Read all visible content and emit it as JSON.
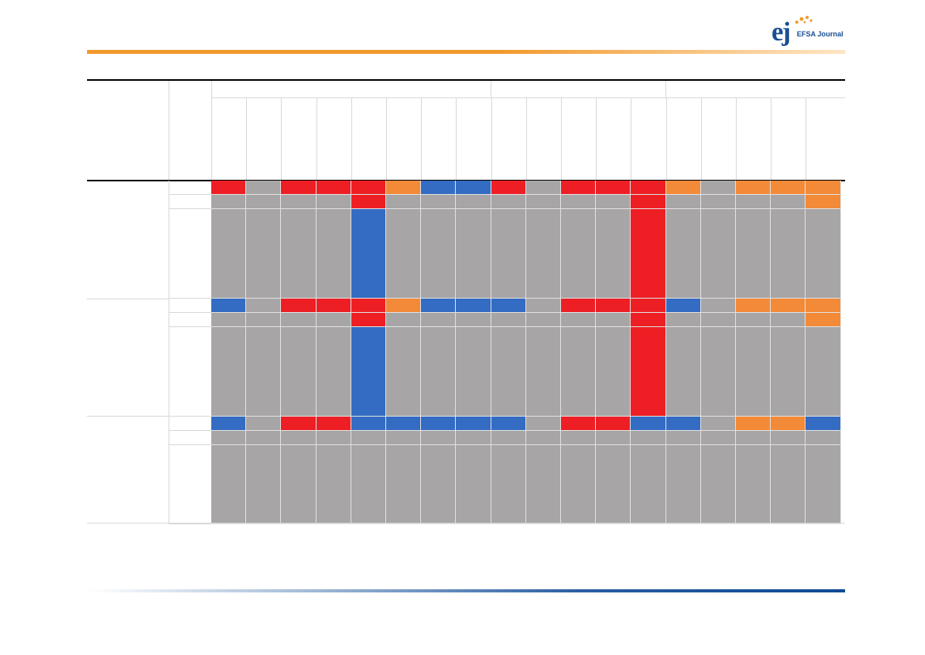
{
  "header": {
    "journal_name": "EFSA Journal",
    "logo_mark": "ej",
    "top_bar_color": "#f19a2e",
    "bottom_bar_color": "#0d4a95"
  },
  "legend_colors": {
    "R": "#ed1f24",
    "O": "#f28a38",
    "B": "#336cc2",
    "G": "#a7a5a6"
  },
  "matrix": {
    "columns": 18,
    "groups": [
      {
        "columns": 8
      },
      {
        "columns": 5
      },
      {
        "columns": 5
      }
    ],
    "rows": [
      {
        "band": "short",
        "cells": [
          "R",
          "G",
          "R",
          "R",
          "R",
          "O",
          "B",
          "B",
          "R",
          "G",
          "R",
          "R",
          "R",
          "O",
          "G",
          "O",
          "O",
          "O"
        ]
      },
      {
        "band": "short",
        "cells": [
          "G",
          "G",
          "G",
          "G",
          "R",
          "G",
          "G",
          "G",
          "G",
          "G",
          "G",
          "G",
          "R",
          "G",
          "G",
          "G",
          "G",
          "O"
        ]
      },
      {
        "band": "tall",
        "cells": [
          "G",
          "G",
          "G",
          "G",
          "B",
          "G",
          "G",
          "G",
          "G",
          "G",
          "G",
          "G",
          "R",
          "G",
          "G",
          "G",
          "G",
          "G"
        ]
      },
      {
        "band": "short",
        "cells": [
          "B",
          "G",
          "R",
          "R",
          "R",
          "O",
          "B",
          "B",
          "B",
          "G",
          "R",
          "R",
          "R",
          "B",
          "G",
          "O",
          "O",
          "O"
        ]
      },
      {
        "band": "short",
        "cells": [
          "G",
          "G",
          "G",
          "G",
          "R",
          "G",
          "G",
          "G",
          "G",
          "G",
          "G",
          "G",
          "R",
          "G",
          "G",
          "G",
          "G",
          "O"
        ]
      },
      {
        "band": "tall",
        "cells": [
          "G",
          "G",
          "G",
          "G",
          "B",
          "G",
          "G",
          "G",
          "G",
          "G",
          "G",
          "G",
          "R",
          "G",
          "G",
          "G",
          "G",
          "G"
        ]
      },
      {
        "band": "short",
        "cells": [
          "B",
          "G",
          "R",
          "R",
          "B",
          "B",
          "B",
          "B",
          "B",
          "G",
          "R",
          "R",
          "B",
          "B",
          "G",
          "O",
          "O",
          "B"
        ]
      },
      {
        "band": "short",
        "cells": [
          "G",
          "G",
          "G",
          "G",
          "G",
          "G",
          "G",
          "G",
          "G",
          "G",
          "G",
          "G",
          "G",
          "G",
          "G",
          "G",
          "G",
          "G"
        ]
      },
      {
        "band": "tall3",
        "cells": [
          "G",
          "G",
          "G",
          "G",
          "G",
          "G",
          "G",
          "G",
          "G",
          "G",
          "G",
          "G",
          "G",
          "G",
          "G",
          "G",
          "G",
          "G"
        ]
      }
    ]
  }
}
